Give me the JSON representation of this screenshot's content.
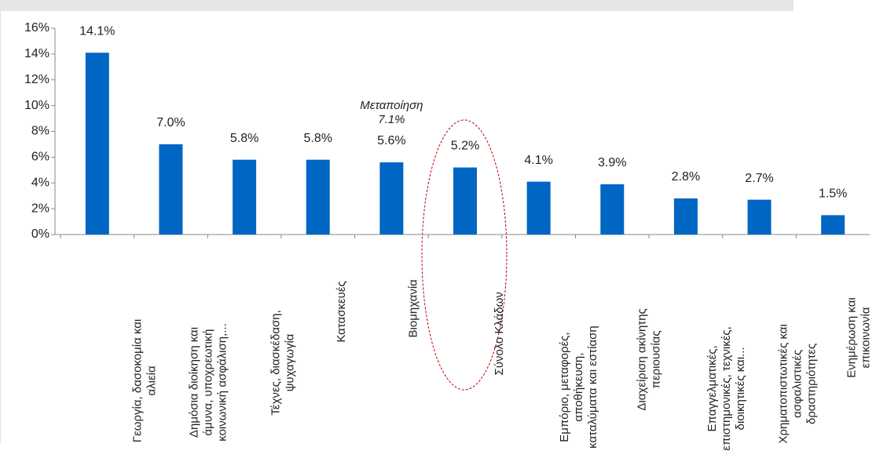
{
  "chart_data": {
    "type": "bar",
    "color": "#0066c4",
    "categories": [
      "Γεωργία, δασοκομία και\nαλιεία",
      "Δημόσια διοίκηση και\nάμυνα, υποχρεωτική\nκοινωνική ασφάλιση,...",
      "Τέχνες, διασκέδαση,\nψυχαγωγία",
      "Κατασκευές",
      "Βιομηχανία",
      "Σύνολο Κλάδων",
      "Εμπόριο, μεταφορές,\nαποθήκευση,\nκαταλύματα και εστίαση",
      "Διαχείριση ακίνητης\nπεριουσίας",
      "Επαγγελματικές,\nεπιστημονικές, τεχνικές,\nδιοικητικές και...",
      "Χρηματοπιστωτικές και\nασφαλιστικές\nδραστηριότητες",
      "Ενημέρωση και\nεπικοινωνία"
    ],
    "values": [
      14.1,
      7.0,
      5.8,
      5.8,
      5.6,
      5.2,
      4.1,
      3.9,
      2.8,
      2.7,
      1.5
    ],
    "value_labels": [
      "14.1%",
      "7.0%",
      "5.8%",
      "5.8%",
      "5.6%",
      "5.2%",
      "4.1%",
      "3.9%",
      "2.8%",
      "2.7%",
      "1.5%"
    ],
    "annotations": [
      {
        "category": 4,
        "text": "Μεταποίηση\n7.1%"
      }
    ],
    "ylim": [
      0,
      16
    ],
    "yticks": [
      {
        "value": 0,
        "label": "0%"
      },
      {
        "value": 2,
        "label": "2%"
      },
      {
        "value": 4,
        "label": "4%"
      },
      {
        "value": 6,
        "label": "6%"
      },
      {
        "value": 8,
        "label": "8%"
      },
      {
        "value": 10,
        "label": "10%"
      },
      {
        "value": 12,
        "label": "12%"
      },
      {
        "value": 14,
        "label": "14%"
      },
      {
        "value": 16,
        "label": "16%"
      }
    ]
  }
}
